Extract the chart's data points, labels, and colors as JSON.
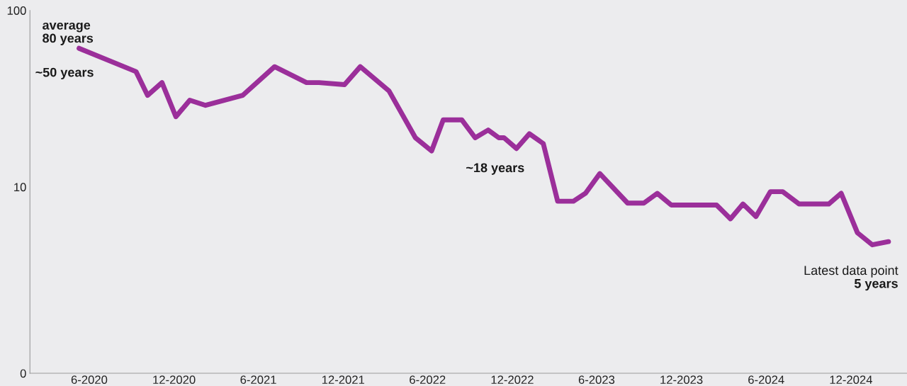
{
  "chart_data": {
    "type": "line",
    "log": true,
    "grid": false,
    "legend": false,
    "x": [
      "2020-05-10",
      "2020-09-10",
      "2020-10-05",
      "2020-11-05",
      "2020-12-05",
      "2021-01-04",
      "2021-02-07",
      "2021-04-28",
      "2021-07-06",
      "2021-09-13",
      "2021-10-10",
      "2021-12-04",
      "2022-01-07",
      "2022-03-10",
      "2022-05-06",
      "2022-06-10",
      "2022-07-05",
      "2022-08-14",
      "2022-09-12",
      "2022-10-10",
      "2022-11-02",
      "2022-11-13",
      "2022-12-10",
      "2023-01-07",
      "2023-02-06",
      "2023-03-09",
      "2023-04-12",
      "2023-05-08",
      "2023-06-08",
      "2023-08-07",
      "2023-09-11",
      "2023-10-10",
      "2023-11-09",
      "2024-02-15",
      "2024-03-16",
      "2024-04-12",
      "2024-05-10",
      "2024-06-10",
      "2024-07-07",
      "2024-08-11",
      "2024-10-14",
      "2024-11-10",
      "2024-12-15",
      "2025-01-16",
      "2025-02-20"
    ],
    "series": [
      {
        "color": "#9b2f9a",
        "values": [
          61,
          45,
          33,
          39,
          25,
          31,
          29,
          33,
          48,
          39,
          39,
          38,
          48,
          35,
          19,
          16,
          24,
          24,
          19,
          21,
          19,
          19,
          16.5,
          20,
          17.6,
          8.3,
          8.3,
          9.2,
          11.9,
          8.1,
          8.1,
          9.2,
          7.9,
          7.9,
          6.6,
          8,
          6.8,
          9.4,
          9.4,
          8,
          8,
          9.2,
          5.5,
          4.7,
          4.9
        ]
      }
    ],
    "xlim": [
      "2020-01-25",
      "2025-04-01"
    ],
    "xticks": [
      {
        "value": "2020-06-01",
        "label": "6-2020"
      },
      {
        "value": "2020-12-01",
        "label": "12-2020"
      },
      {
        "value": "2021-06-01",
        "label": "6-2021"
      },
      {
        "value": "2021-12-01",
        "label": "12-2021"
      },
      {
        "value": "2022-06-01",
        "label": "6-2022"
      },
      {
        "value": "2022-12-01",
        "label": "12-2022"
      },
      {
        "value": "2023-06-01",
        "label": "6-2023"
      },
      {
        "value": "2023-12-01",
        "label": "12-2023"
      },
      {
        "value": "2024-06-01",
        "label": "6-2024"
      },
      {
        "value": "2024-12-01",
        "label": "12-2024"
      }
    ],
    "ylim": [
      0,
      100
    ],
    "yticks": [
      0,
      10,
      100
    ],
    "annotations": [
      "average\n80 years",
      "~50 years",
      "~18 years",
      "Latest data point\n5 years"
    ]
  }
}
